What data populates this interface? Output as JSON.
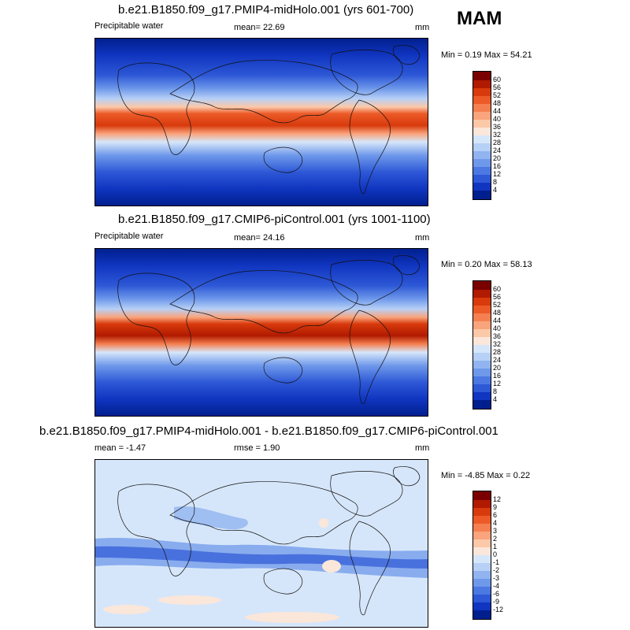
{
  "season": "MAM",
  "panels": [
    {
      "title": "b.e21.B1850.f09_g17.PMIP4-midHolo.001 (yrs 601-700)",
      "left_label": "Precipitable water",
      "mean_label": "mean=  22.69",
      "units": "mm",
      "minmax": "Min =  0.19 Max =  54.21",
      "levels": [
        "60",
        "56",
        "52",
        "48",
        "44",
        "40",
        "36",
        "32",
        "28",
        "24",
        "20",
        "16",
        "12",
        "8",
        "4"
      ],
      "colors": [
        "#7a0000",
        "#b01a00",
        "#d83a0c",
        "#ec5a28",
        "#f57f50",
        "#f9a47c",
        "#fbc8a8",
        "#fbe6da",
        "#d6e6fa",
        "#b7d0f6",
        "#91b4f0",
        "#6e98ea",
        "#4b78e2",
        "#2d58d6",
        "#1035c0",
        "#001f8e"
      ]
    },
    {
      "title": "b.e21.B1850.f09_g17.CMIP6-piControl.001 (yrs 1001-1100)",
      "left_label": "Precipitable water",
      "mean_label": "mean=  24.16",
      "units": "mm",
      "minmax": "Min =  0.20 Max =  58.13",
      "levels": [
        "60",
        "56",
        "52",
        "48",
        "44",
        "40",
        "36",
        "32",
        "28",
        "24",
        "20",
        "16",
        "12",
        "8",
        "4"
      ],
      "colors": [
        "#7a0000",
        "#b01a00",
        "#d83a0c",
        "#ec5a28",
        "#f57f50",
        "#f9a47c",
        "#fbc8a8",
        "#fbe6da",
        "#d6e6fa",
        "#b7d0f6",
        "#91b4f0",
        "#6e98ea",
        "#4b78e2",
        "#2d58d6",
        "#1035c0",
        "#001f8e"
      ]
    },
    {
      "title": "b.e21.B1850.f09_g17.PMIP4-midHolo.001 - b.e21.B1850.f09_g17.CMIP6-piControl.001",
      "left_label": "mean =  -1.47",
      "mean_label": "rmse =   1.90",
      "units": "mm",
      "minmax": "Min =  -4.85 Max =   0.22",
      "levels": [
        "12",
        "9",
        "6",
        "4",
        "3",
        "2",
        "1",
        "0",
        "-1",
        "-2",
        "-3",
        "-4",
        "-6",
        "-9",
        "-12"
      ],
      "colors": [
        "#7a0000",
        "#b01a00",
        "#d83a0c",
        "#ec5a28",
        "#f57f50",
        "#f9a47c",
        "#fbc8a8",
        "#fbe6da",
        "#d6e6fa",
        "#b7d0f6",
        "#91b4f0",
        "#6e98ea",
        "#4b78e2",
        "#2d58d6",
        "#1035c0",
        "#001f8e"
      ]
    }
  ]
}
